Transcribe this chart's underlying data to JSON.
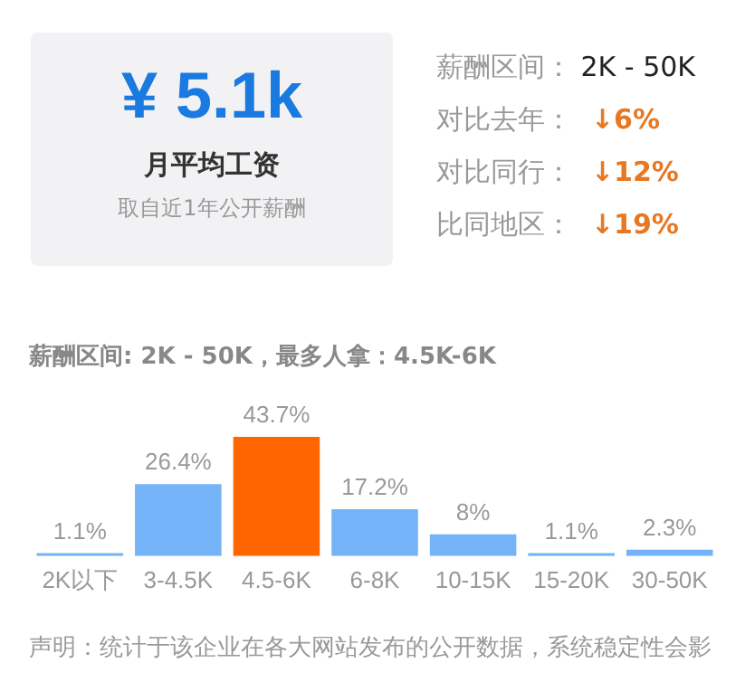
{
  "chart_data": [
    {
      "type": "other",
      "title": "¥ 5.1k",
      "subtitle": "月平均工资",
      "annotations": [
        "取自近1年公开薪酬",
        "薪酬区间： 2K - 50K",
        "对比去年：  ↓6%",
        "对比同行：  ↓12%",
        "比同地区：  ↓19%"
      ]
    },
    {
      "type": "bar",
      "title": "薪酬区间: 2K - 50K，最多人拿：4.5K-6K",
      "categories": [
        "2K以下",
        "3-4.5K",
        "4.5-6K",
        "6-8K",
        "10-15K",
        "15-20K",
        "30-50K"
      ],
      "values": [
        1.1,
        26.4,
        43.7,
        17.2,
        8,
        1.1,
        2.3
      ],
      "colors": [
        "#74b3f7",
        "#74b3f7",
        "#ff6600",
        "#74b3f7",
        "#74b3f7",
        "#74b3f7",
        "#74b3f7"
      ],
      "value_labels": [
        "1.1%",
        "26.4%",
        "43.7%",
        "17.2%",
        "8%",
        "1.1%",
        "2.3%"
      ],
      "tick_labels": "x",
      "grid": false,
      "legend": false,
      "annotations": [
        "声明：统计于该企业在各大网站发布的公开数据，系统稳定性会影"
      ]
    }
  ]
}
